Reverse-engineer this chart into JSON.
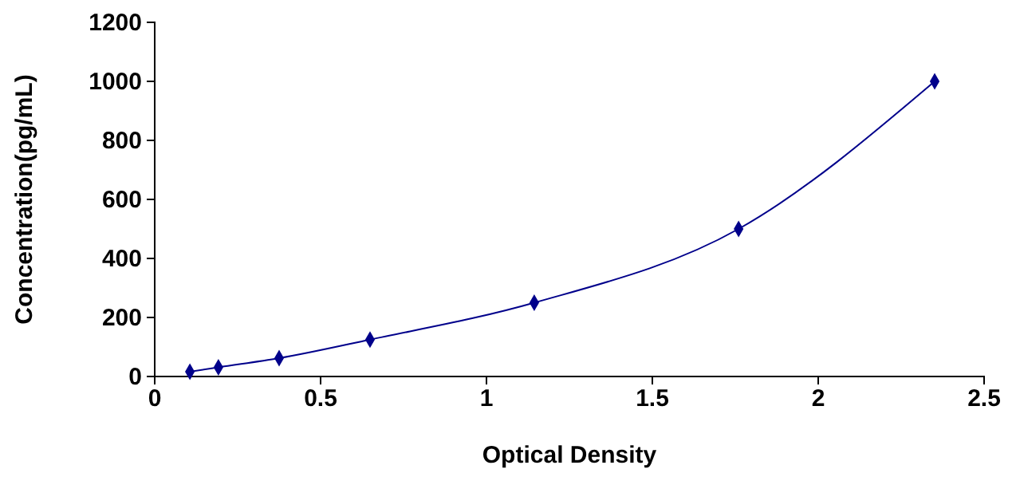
{
  "chart_data": {
    "type": "line",
    "xlabel": "Optical Density",
    "ylabel": "Concentration(pg/mL)",
    "x": [
      0.106,
      0.192,
      0.375,
      0.649,
      1.144,
      1.76,
      2.351
    ],
    "series": [
      {
        "color": "#00008b",
        "values": [
          16,
          31,
          62,
          125,
          250,
          500,
          1000
        ]
      }
    ],
    "xlim": [
      0,
      2.5
    ],
    "xticks": [
      0,
      0.5,
      1,
      1.5,
      2,
      2.5
    ],
    "ylim": [
      0,
      1200
    ],
    "yticks": [
      0,
      200,
      400,
      600,
      800,
      1000,
      1200
    ],
    "marker": "diamond",
    "line_style": "solid",
    "grid": false
  }
}
